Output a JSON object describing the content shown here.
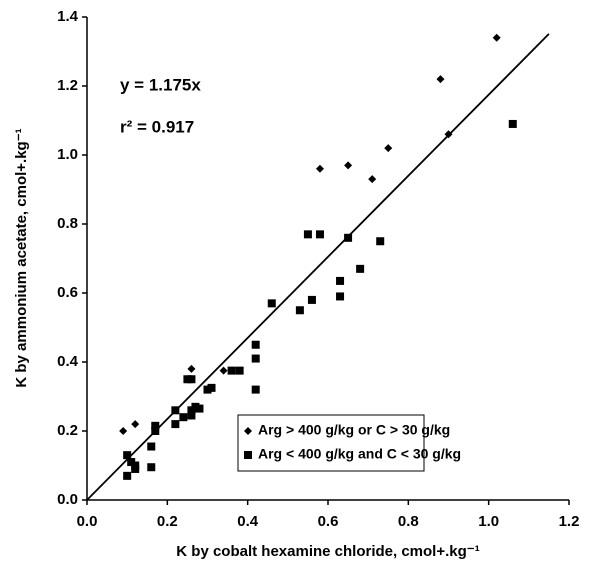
{
  "chart_data": {
    "type": "scatter",
    "x_label": "K by cobalt hexamine chloride, cmol+.kg⁻¹",
    "y_label": "K by ammonium acetate, cmol+.kg⁻¹",
    "annotations": [
      "y = 1.175x",
      "r² = 0.917"
    ],
    "xlim": [
      0,
      1.2
    ],
    "ylim": [
      0,
      1.4
    ],
    "xticks": [
      {
        "value": 0,
        "label": "0.0"
      },
      0.2,
      0.4,
      0.6,
      0.8,
      {
        "value": 1,
        "label": "1.0"
      },
      1.2
    ],
    "yticks": [
      {
        "value": 0,
        "label": "0.0"
      },
      0.2,
      0.4,
      0.6,
      0.8,
      {
        "value": 1,
        "label": "1.0"
      },
      1.2,
      1.4
    ],
    "grid": false,
    "legend": "bottom-right",
    "trendline": {
      "color": "#000000",
      "x": [
        0,
        1.15
      ],
      "values": [
        0,
        1.351
      ]
    },
    "series": [
      {
        "name": "Arg > 400 g/kg or C > 30 g/kg",
        "marker": "diamond",
        "color": "#000000",
        "x": [
          0.09,
          0.12,
          0.26,
          0.34,
          0.58,
          0.65,
          0.71,
          0.75,
          0.88,
          0.9,
          1.02
        ],
        "values": [
          0.2,
          0.22,
          0.38,
          0.375,
          0.96,
          0.97,
          0.93,
          1.02,
          1.22,
          1.06,
          1.34
        ]
      },
      {
        "name": "Arg < 400 g/kg and C < 30 g/kg",
        "marker": "square",
        "color": "#000000",
        "x": [
          0.1,
          0.1,
          0.11,
          0.12,
          0.12,
          0.16,
          0.16,
          0.17,
          0.17,
          0.22,
          0.22,
          0.24,
          0.25,
          0.26,
          0.26,
          0.26,
          0.27,
          0.28,
          0.3,
          0.31,
          0.36,
          0.38,
          0.42,
          0.42,
          0.42,
          0.46,
          0.53,
          0.55,
          0.56,
          0.58,
          0.63,
          0.63,
          0.65,
          0.68,
          0.73,
          1.06
        ],
        "values": [
          0.07,
          0.13,
          0.11,
          0.09,
          0.1,
          0.155,
          0.095,
          0.2,
          0.215,
          0.26,
          0.22,
          0.24,
          0.35,
          0.35,
          0.26,
          0.245,
          0.27,
          0.265,
          0.32,
          0.325,
          0.375,
          0.375,
          0.41,
          0.45,
          0.32,
          0.57,
          0.55,
          0.77,
          0.58,
          0.77,
          0.59,
          0.635,
          0.76,
          0.67,
          0.75,
          1.09
        ]
      }
    ]
  }
}
